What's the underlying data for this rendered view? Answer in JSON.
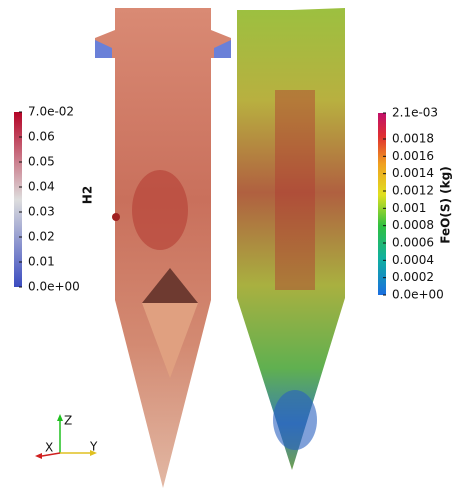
{
  "colorbars": [
    {
      "title": "H2",
      "range": [
        0,
        0.07
      ],
      "ticks": [
        {
          "value": 0,
          "label": "0.0e+00"
        },
        0.01,
        0.02,
        0.03,
        0.04,
        0.05,
        0.06,
        {
          "value": 0.07,
          "label": "7.0e-02"
        }
      ]
    },
    {
      "title": "FeO(S) (kg)",
      "range": [
        0,
        0.0021
      ],
      "ticks": [
        {
          "value": 0,
          "label": "0.0e+00"
        },
        0.0002,
        0.0004,
        0.0006,
        0.0008,
        0.001,
        0.0012,
        0.0014,
        0.0016,
        0.0018,
        {
          "value": 0.0021,
          "label": "2.1e-03"
        }
      ]
    }
  ],
  "axes": {
    "x": "X",
    "y": "Y",
    "z": "Z"
  }
}
